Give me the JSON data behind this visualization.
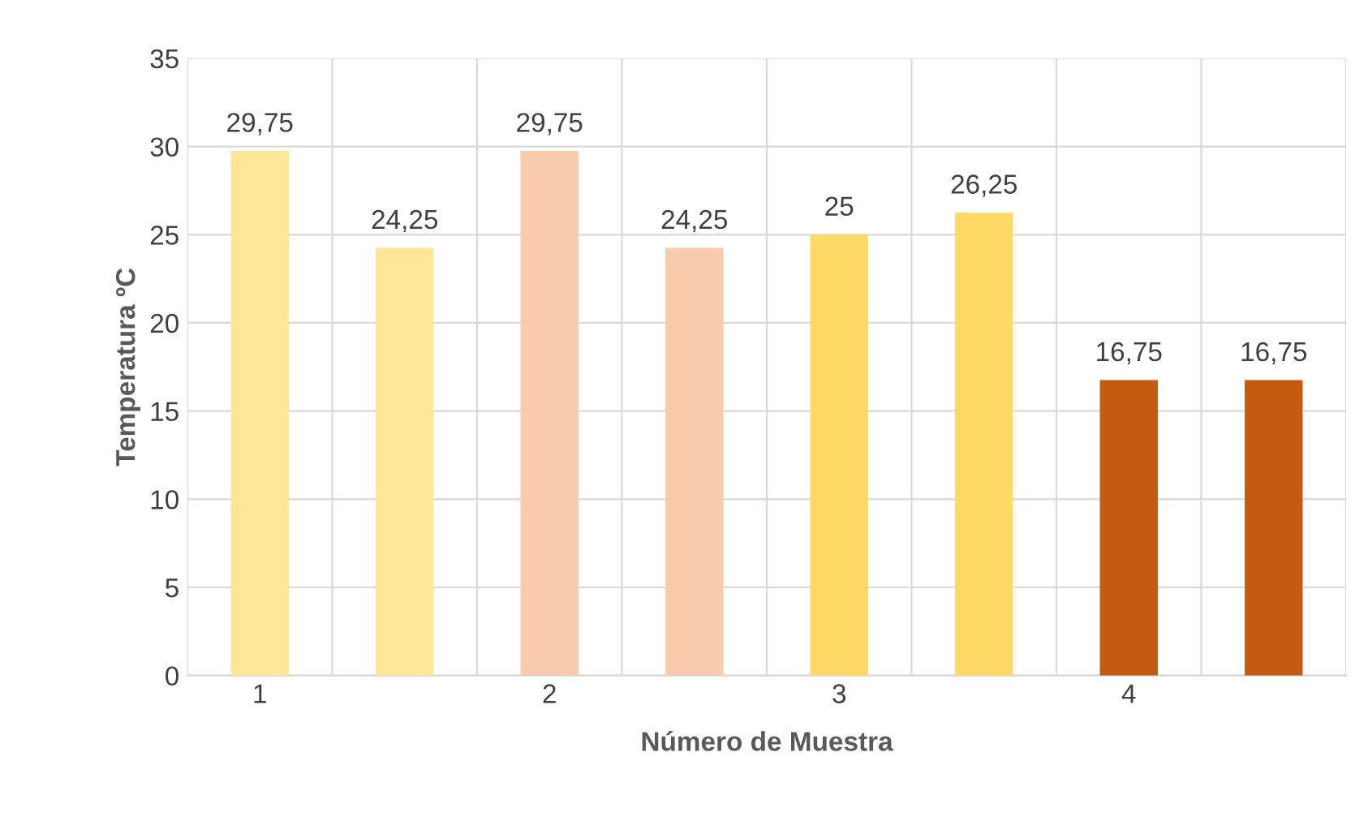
{
  "chart_data": {
    "type": "bar",
    "xlabel": "Número de Muestra",
    "ylabel": "Temperatura ºC",
    "categories": [
      "1",
      null,
      "2",
      null,
      "3",
      null,
      "4",
      null
    ],
    "values": [
      29.75,
      24.25,
      29.75,
      24.25,
      25,
      26.25,
      16.75,
      16.75
    ],
    "colors": [
      "#ffe699",
      "#ffe699",
      "#f8cbad",
      "#f8cbad",
      "#ffd966",
      "#ffd966",
      "#c55a11",
      "#c55a11"
    ],
    "value_labels": [
      "29,75",
      "24,25",
      "29,75",
      "24,25",
      "25",
      "26,25",
      "16,75",
      "16,75"
    ],
    "ylim": [
      0,
      35
    ],
    "yticks": [
      0,
      5,
      10,
      15,
      20,
      25,
      30,
      35
    ],
    "grid": true
  }
}
